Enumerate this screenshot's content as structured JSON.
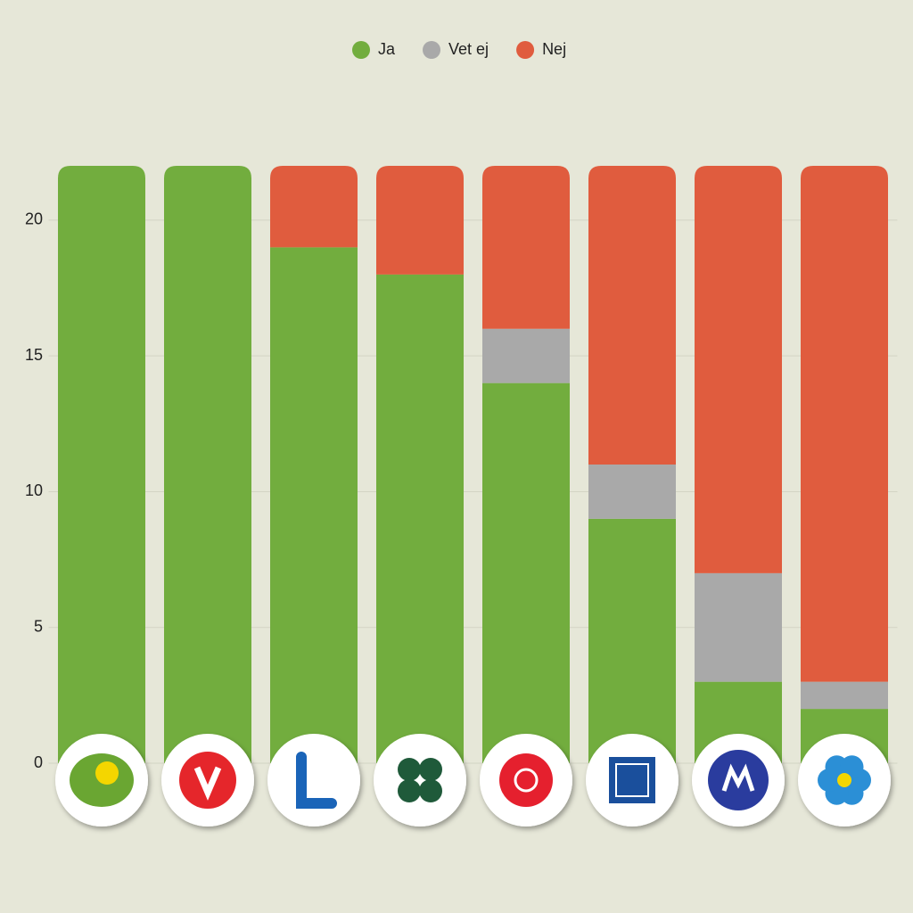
{
  "chart_data": {
    "type": "stacked_bar",
    "categories": [
      null,
      null,
      null,
      null,
      null,
      null,
      null,
      null
    ],
    "series": [
      {
        "name": "Ja",
        "color": "#72ad3e",
        "values": [
          22,
          22,
          19,
          18,
          14,
          9,
          3,
          2
        ]
      },
      {
        "name": "Vet ej",
        "color": "#a9a9a9",
        "values": [
          0,
          0,
          0,
          0,
          2,
          2,
          4,
          1
        ]
      },
      {
        "name": "Nej",
        "color": "#e05c3e",
        "values": [
          0,
          0,
          3,
          4,
          6,
          11,
          15,
          19
        ]
      }
    ],
    "ylim": [
      0,
      22
    ],
    "yticks": [
      0,
      5,
      10,
      15,
      20
    ],
    "grid": true,
    "legend": "top"
  }
}
